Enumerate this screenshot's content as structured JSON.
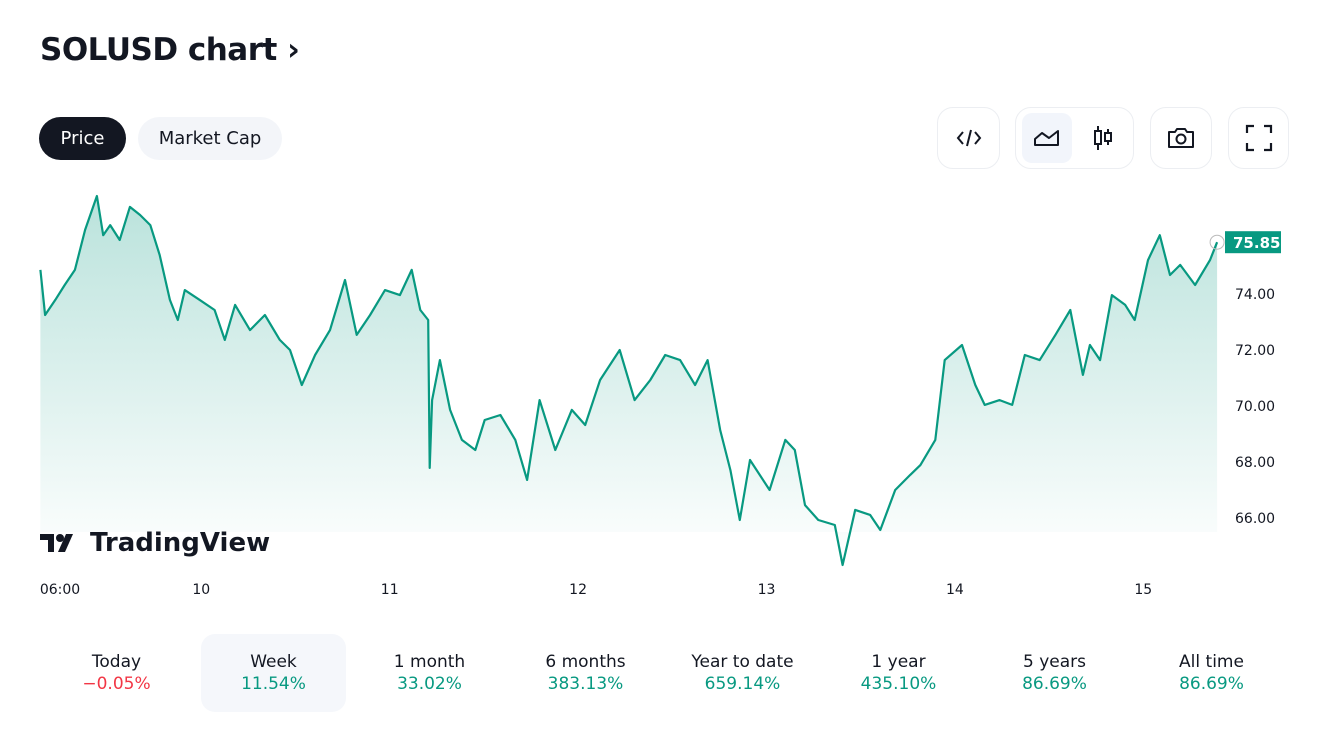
{
  "header": {
    "title": "SOLUSD chart ›"
  },
  "tabs": [
    {
      "label": "Price",
      "active": true
    },
    {
      "label": "Market Cap",
      "active": false
    }
  ],
  "toolbar": {
    "icons": [
      "embed-code-icon",
      "area-chart-icon",
      "candlestick-icon",
      "camera-icon",
      "fullscreen-icon"
    ]
  },
  "brand": {
    "logo_text": "TradingView"
  },
  "colors": {
    "line": "#089981",
    "negative": "#f23645",
    "positive": "#089981"
  },
  "chart_data": {
    "type": "area",
    "title": "SOLUSD",
    "x_unit": "hours since 06:00 on the 9th",
    "y_ticks": [
      "66.00",
      "68.00",
      "70.00",
      "72.00",
      "74.00"
    ],
    "y_tick_values": [
      66,
      68,
      70,
      72,
      74
    ],
    "x_ticks": [
      {
        "label": "06:00",
        "x": 0
      },
      {
        "label": "10",
        "x": 18
      },
      {
        "label": "11",
        "x": 42
      },
      {
        "label": "12",
        "x": 66
      },
      {
        "label": "13",
        "x": 90
      },
      {
        "label": "14",
        "x": 114
      },
      {
        "label": "15",
        "x": 138
      }
    ],
    "ylim": [
      64,
      78
    ],
    "last_price": "75.85",
    "points": [
      [
        -2.5,
        74.86
      ],
      [
        -1.9,
        73.25
      ],
      [
        -0.6,
        73.79
      ],
      [
        0.6,
        74.32
      ],
      [
        1.9,
        74.86
      ],
      [
        3.2,
        76.29
      ],
      [
        4.7,
        77.5
      ],
      [
        5.5,
        76.1
      ],
      [
        6.4,
        76.46
      ],
      [
        7.6,
        75.93
      ],
      [
        8.9,
        77.11
      ],
      [
        10.2,
        76.82
      ],
      [
        11.5,
        76.46
      ],
      [
        12.7,
        75.39
      ],
      [
        14.0,
        73.79
      ],
      [
        15.0,
        73.07
      ],
      [
        15.9,
        74.14
      ],
      [
        17.8,
        73.79
      ],
      [
        19.7,
        73.43
      ],
      [
        21.0,
        72.36
      ],
      [
        22.3,
        73.61
      ],
      [
        24.2,
        72.71
      ],
      [
        26.1,
        73.25
      ],
      [
        28.0,
        72.36
      ],
      [
        29.3,
        72.0
      ],
      [
        30.8,
        70.75
      ],
      [
        32.5,
        71.82
      ],
      [
        34.4,
        72.71
      ],
      [
        36.3,
        74.5
      ],
      [
        37.8,
        72.54
      ],
      [
        39.5,
        73.25
      ],
      [
        41.4,
        74.14
      ],
      [
        43.3,
        73.96
      ],
      [
        44.8,
        74.86
      ],
      [
        45.9,
        73.43
      ],
      [
        46.9,
        73.07
      ],
      [
        47.1,
        67.79
      ],
      [
        47.4,
        70.21
      ],
      [
        48.4,
        71.64
      ],
      [
        49.7,
        69.86
      ],
      [
        51.2,
        68.79
      ],
      [
        52.9,
        68.43
      ],
      [
        54.1,
        69.5
      ],
      [
        56.1,
        69.68
      ],
      [
        58.0,
        68.79
      ],
      [
        59.5,
        67.36
      ],
      [
        61.1,
        70.21
      ],
      [
        63.1,
        68.43
      ],
      [
        65.2,
        69.86
      ],
      [
        66.9,
        69.32
      ],
      [
        68.8,
        70.93
      ],
      [
        71.3,
        72.0
      ],
      [
        73.2,
        70.21
      ],
      [
        75.2,
        70.93
      ],
      [
        77.1,
        71.82
      ],
      [
        79.0,
        71.64
      ],
      [
        80.9,
        70.75
      ],
      [
        82.5,
        71.64
      ],
      [
        84.1,
        69.14
      ],
      [
        85.4,
        67.71
      ],
      [
        86.6,
        65.93
      ],
      [
        87.9,
        68.07
      ],
      [
        90.4,
        67.0
      ],
      [
        92.4,
        68.79
      ],
      [
        93.6,
        68.43
      ],
      [
        94.9,
        66.46
      ],
      [
        96.6,
        65.93
      ],
      [
        98.7,
        65.75
      ],
      [
        99.7,
        64.32
      ],
      [
        101.3,
        66.29
      ],
      [
        103.2,
        66.11
      ],
      [
        104.5,
        65.57
      ],
      [
        106.4,
        67.0
      ],
      [
        108.3,
        67.54
      ],
      [
        109.6,
        67.89
      ],
      [
        111.5,
        68.79
      ],
      [
        112.7,
        71.64
      ],
      [
        114.9,
        72.18
      ],
      [
        116.6,
        70.75
      ],
      [
        117.8,
        70.04
      ],
      [
        119.7,
        70.21
      ],
      [
        121.3,
        70.04
      ],
      [
        122.9,
        71.82
      ],
      [
        124.8,
        71.64
      ],
      [
        126.8,
        72.54
      ],
      [
        128.7,
        73.43
      ],
      [
        130.3,
        71.11
      ],
      [
        131.2,
        72.18
      ],
      [
        132.5,
        71.64
      ],
      [
        134.0,
        73.96
      ],
      [
        135.7,
        73.61
      ],
      [
        136.9,
        73.07
      ],
      [
        138.6,
        75.21
      ],
      [
        140.1,
        76.1
      ],
      [
        141.4,
        74.68
      ],
      [
        142.7,
        75.04
      ],
      [
        144.6,
        74.32
      ],
      [
        146.5,
        75.21
      ],
      [
        147.4,
        75.85
      ]
    ]
  },
  "stats": [
    {
      "label": "Today",
      "value": "−0.05%",
      "dir": "neg"
    },
    {
      "label": "Week",
      "value": "11.54%",
      "dir": "pos",
      "selected": true
    },
    {
      "label": "1 month",
      "value": "33.02%",
      "dir": "pos"
    },
    {
      "label": "6 months",
      "value": "383.13%",
      "dir": "pos"
    },
    {
      "label": "Year to date",
      "value": "659.14%",
      "dir": "pos"
    },
    {
      "label": "1 year",
      "value": "435.10%",
      "dir": "pos"
    },
    {
      "label": "5 years",
      "value": "86.69%",
      "dir": "pos"
    },
    {
      "label": "All time",
      "value": "86.69%",
      "dir": "pos"
    }
  ]
}
